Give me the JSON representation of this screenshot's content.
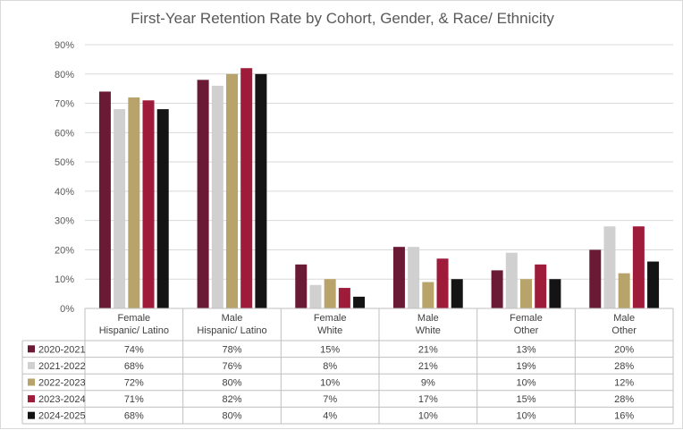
{
  "title": "First-Year Retention Rate by Cohort, Gender, & Race/ Ethnicity",
  "chart_data": {
    "type": "bar",
    "title": "First-Year Retention Rate by Cohort, Gender, & Race/ Ethnicity",
    "categories": [
      [
        "Female",
        "Hispanic/ Latino"
      ],
      [
        "Male",
        "Hispanic/ Latino"
      ],
      [
        "Female",
        "White"
      ],
      [
        "Male",
        "White"
      ],
      [
        "Female",
        "Other"
      ],
      [
        "Male",
        "Other"
      ]
    ],
    "y_ticks": [
      "0%",
      "10%",
      "20%",
      "30%",
      "40%",
      "50%",
      "60%",
      "70%",
      "80%",
      "90%"
    ],
    "ylim": [
      0,
      90
    ],
    "grid": true,
    "legend": "data-table",
    "series": [
      {
        "name": "2020-2021",
        "color": "#6b1a35",
        "values": [
          74,
          78,
          15,
          21,
          13,
          20
        ],
        "labels": [
          "74%",
          "78%",
          "15%",
          "21%",
          "13%",
          "20%"
        ]
      },
      {
        "name": "2021-2022",
        "color": "#d0d0d0",
        "values": [
          68,
          76,
          8,
          21,
          19,
          28
        ],
        "labels": [
          "68%",
          "76%",
          "8%",
          "21%",
          "19%",
          "28%"
        ]
      },
      {
        "name": "2022-2023",
        "color": "#b8a46a",
        "values": [
          72,
          80,
          10,
          9,
          10,
          12
        ],
        "labels": [
          "72%",
          "80%",
          "10%",
          "9%",
          "10%",
          "12%"
        ]
      },
      {
        "name": "2023-2024",
        "color": "#9e1b3a",
        "values": [
          71,
          82,
          7,
          17,
          15,
          28
        ],
        "labels": [
          "71%",
          "82%",
          "7%",
          "17%",
          "15%",
          "28%"
        ]
      },
      {
        "name": "2024-2025",
        "color": "#141414",
        "values": [
          68,
          80,
          4,
          10,
          10,
          16
        ],
        "labels": [
          "68%",
          "80%",
          "4%",
          "10%",
          "10%",
          "16%"
        ]
      }
    ]
  }
}
